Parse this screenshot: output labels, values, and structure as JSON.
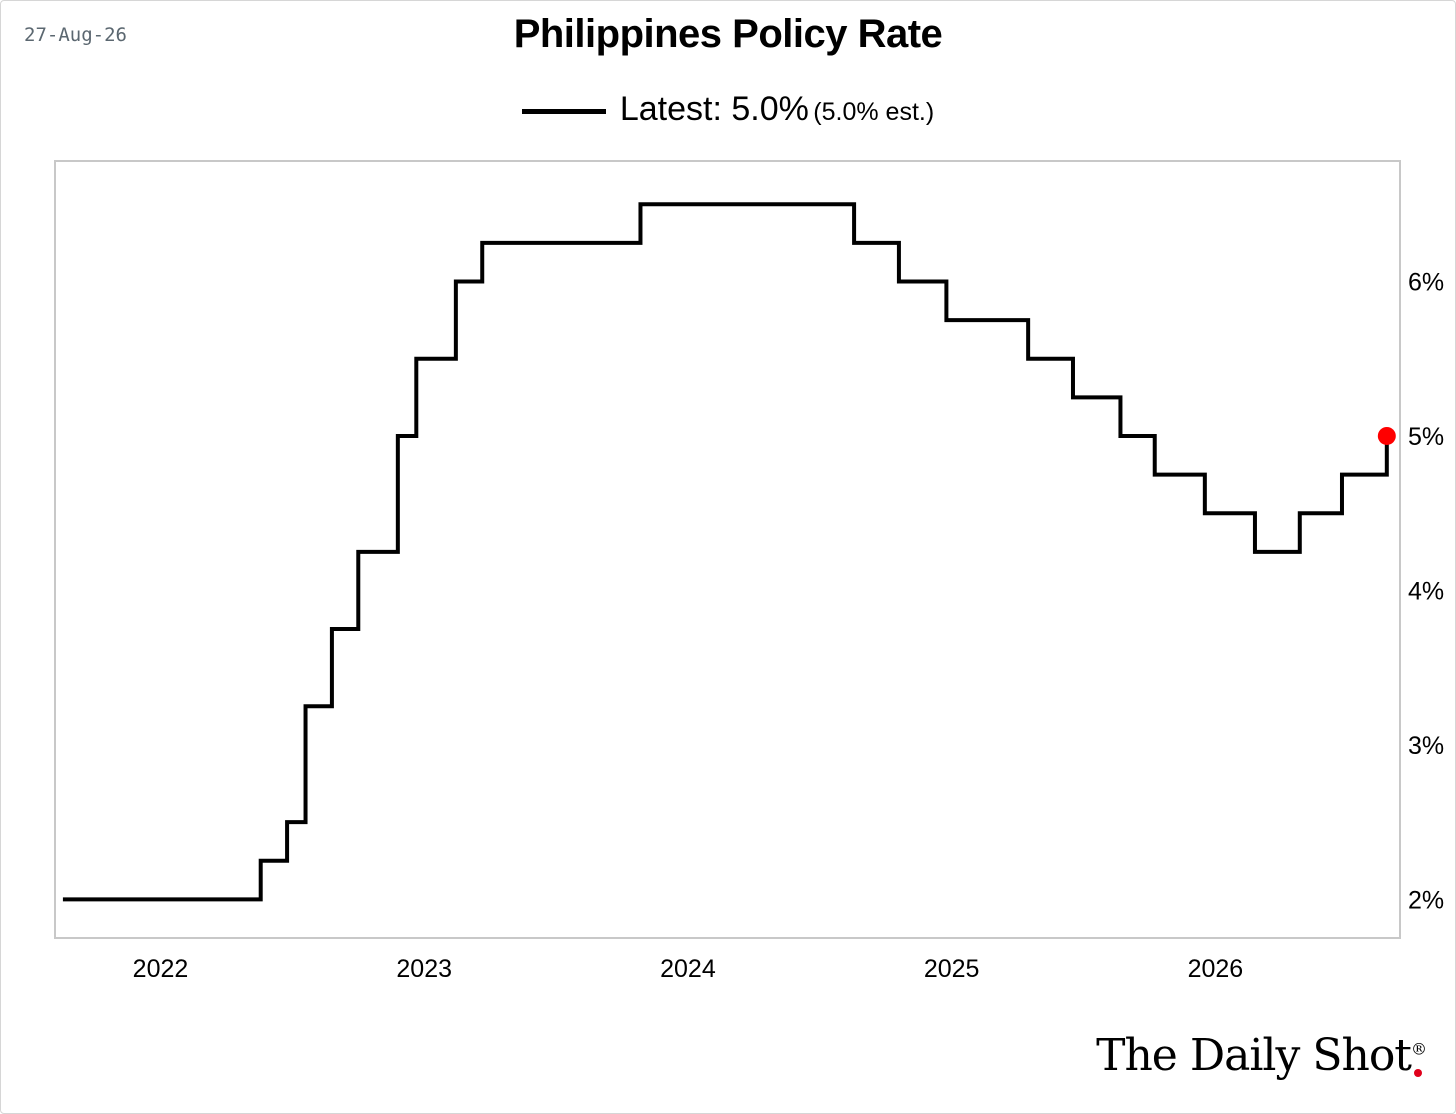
{
  "header": {
    "date": "27-Aug-26"
  },
  "chart_data": {
    "type": "line",
    "title": "Philippines Policy Rate",
    "legend": {
      "label": "Latest: 5.0%",
      "note": "(5.0% est.)",
      "placement": "top-center"
    },
    "xlabel": "",
    "ylabel": "",
    "x_ticks": [
      "2022",
      "2023",
      "2024",
      "2025",
      "2026"
    ],
    "y_ticks": [
      "2%",
      "3%",
      "4%",
      "5%",
      "6%"
    ],
    "xlim": [
      2021.6,
      2026.7
    ],
    "ylim": [
      1.75,
      6.78
    ],
    "grid": false,
    "step": true,
    "series": [
      {
        "color": "#000000",
        "x": [
          2021.63,
          2022.38,
          2022.48,
          2022.55,
          2022.65,
          2022.75,
          2022.9,
          2022.97,
          2023.12,
          2023.22,
          2023.82,
          2024.63,
          2024.8,
          2024.98,
          2025.29,
          2025.46,
          2025.64,
          2025.77,
          2025.96,
          2026.15,
          2026.32,
          2026.48,
          2026.65
        ],
        "y": [
          2.0,
          2.25,
          2.5,
          3.25,
          3.75,
          4.25,
          5.0,
          5.5,
          6.0,
          6.25,
          6.5,
          6.25,
          6.0,
          5.75,
          5.5,
          5.25,
          5.0,
          4.75,
          4.5,
          4.25,
          4.5,
          4.75,
          5.0
        ]
      }
    ],
    "latest_point": {
      "x": 2026.65,
      "y": 5.0,
      "color": "#ff0000"
    }
  },
  "branding": {
    "logo_text": "The Daily Shot",
    "registered_mark": "®"
  }
}
